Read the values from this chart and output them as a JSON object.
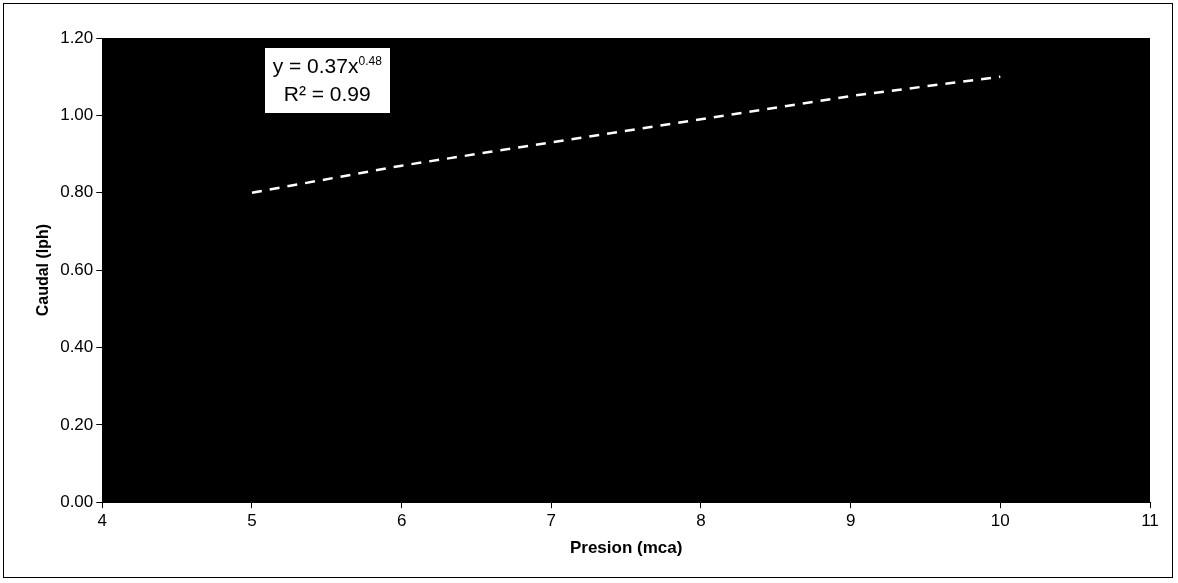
{
  "chart_data": {
    "type": "line",
    "xlabel": "Presion (mca)",
    "ylabel": "Caudal (lph)",
    "x": [
      5,
      6,
      7,
      8,
      9,
      10
    ],
    "series": [
      {
        "color": "#ffffff",
        "values": [
          0.8,
          0.87,
          0.93,
          0.99,
          1.05,
          1.1
        ]
      }
    ],
    "xlim": [
      4,
      11
    ],
    "xticks": [
      4,
      5,
      6,
      7,
      8,
      9,
      10,
      11
    ],
    "ylim": [
      0,
      1.2
    ],
    "yticks": [
      {
        "value": 0,
        "label": "0.00"
      },
      {
        "value": 0.2,
        "label": "0.20"
      },
      {
        "value": 0.4,
        "label": "0.40"
      },
      {
        "value": 0.6,
        "label": "0.60"
      },
      {
        "value": 0.8,
        "label": "0.80"
      },
      {
        "value": 1.0,
        "label": "1.00"
      },
      {
        "value": 1.2,
        "label": "1.20"
      }
    ],
    "annotations": [
      "y = 0.37x$^{0.48}$",
      "R² = 0.99"
    ],
    "grid": false,
    "legend": false,
    "marker": "none",
    "line_style": "dashed"
  }
}
